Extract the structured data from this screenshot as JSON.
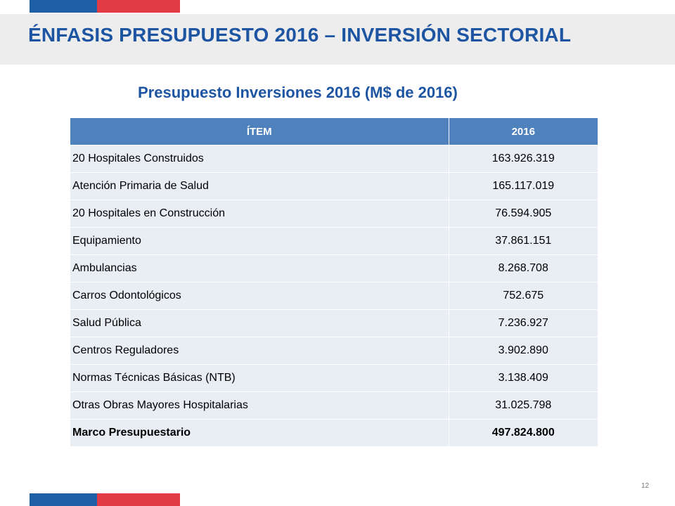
{
  "slide": {
    "title": "ÉNFASIS PRESUPUESTO 2016 – INVERSIÓN SECTORIAL",
    "subtitle": "Presupuesto Inversiones 2016 (M$ de 2016)",
    "page_number": "12"
  },
  "colors": {
    "brand_blue": "#1f5fa8",
    "brand_red": "#e23b45",
    "title_text": "#1d55a3",
    "table_header": "#4f81bd",
    "table_row": "#e9edf4"
  },
  "table": {
    "headers": [
      "ÍTEM",
      "2016"
    ],
    "rows": [
      {
        "item": "20 Hospitales Construidos",
        "value": "163.926.319"
      },
      {
        "item": "Atención Primaria de Salud",
        "value": "165.117.019"
      },
      {
        "item": "20 Hospitales en Construcción",
        "value": "76.594.905"
      },
      {
        "item": "Equipamiento",
        "value": "37.861.151"
      },
      {
        "item": "Ambulancias",
        "value": "8.268.708"
      },
      {
        "item": "Carros Odontológicos",
        "value": "752.675"
      },
      {
        "item": "Salud Pública",
        "value": "7.236.927"
      },
      {
        "item": "Centros Reguladores",
        "value": "3.902.890"
      },
      {
        "item": "Normas Técnicas Básicas (NTB)",
        "value": "3.138.409"
      },
      {
        "item": "Otras Obras Mayores Hospitalarias",
        "value": "31.025.798"
      }
    ],
    "total": {
      "item": "Marco Presupuestario",
      "value": "497.824.800"
    }
  }
}
